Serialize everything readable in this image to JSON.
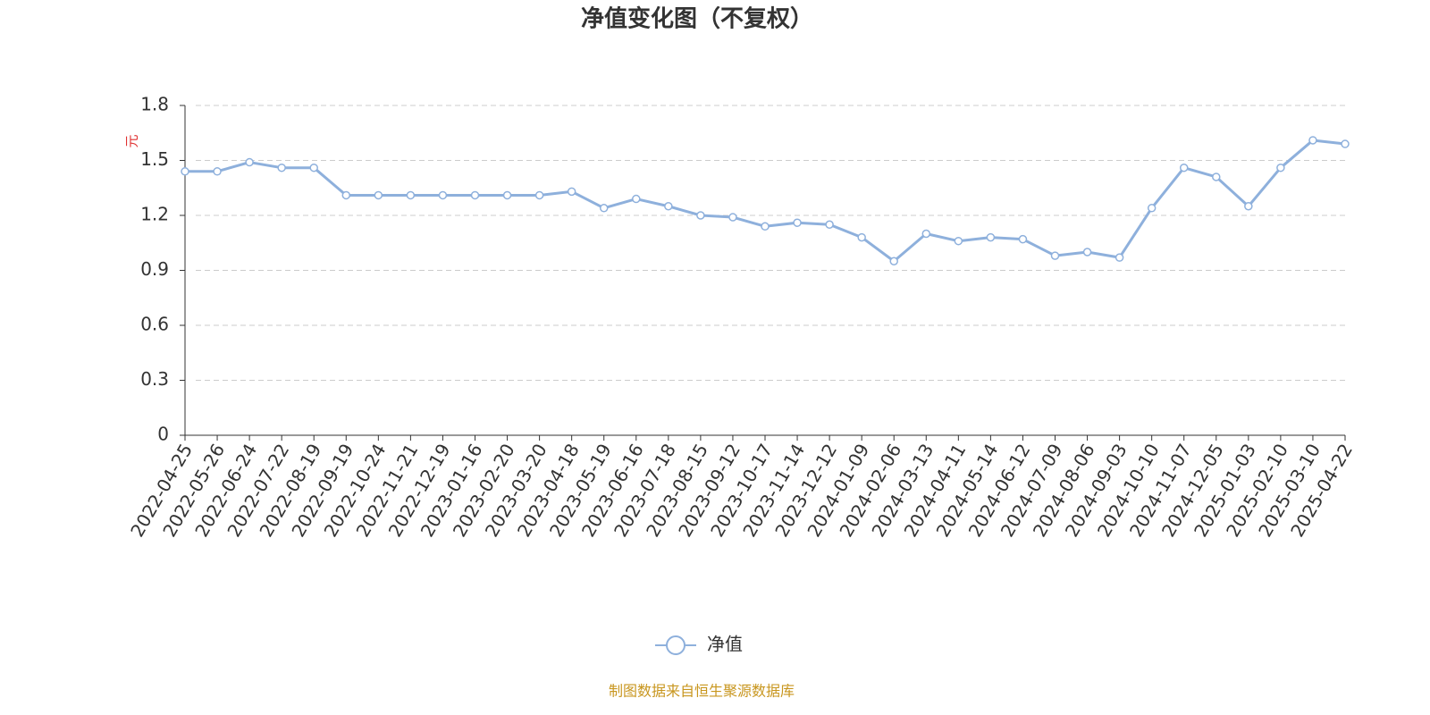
{
  "chart_data": {
    "type": "line",
    "title": "净值变化图（不复权）",
    "y_axis_label": "元",
    "categories": [
      "2022-04-25",
      "2022-05-26",
      "2022-06-24",
      "2022-07-22",
      "2022-08-19",
      "2022-09-19",
      "2022-10-24",
      "2022-11-21",
      "2022-12-19",
      "2023-01-16",
      "2023-02-20",
      "2023-03-20",
      "2023-04-18",
      "2023-05-19",
      "2023-06-16",
      "2023-07-18",
      "2023-08-15",
      "2023-09-12",
      "2023-10-17",
      "2023-11-14",
      "2023-12-12",
      "2024-01-09",
      "2024-02-06",
      "2024-03-13",
      "2024-04-11",
      "2024-05-14",
      "2024-06-12",
      "2024-07-09",
      "2024-08-06",
      "2024-09-03",
      "2024-10-10",
      "2024-11-07",
      "2024-12-05",
      "2025-01-03",
      "2025-02-10",
      "2025-03-10",
      "2025-04-22"
    ],
    "series": [
      {
        "name": "净值",
        "color": "#8eb0dc",
        "values": [
          1.44,
          1.44,
          1.49,
          1.46,
          1.46,
          1.31,
          1.31,
          1.31,
          1.31,
          1.31,
          1.31,
          1.31,
          1.33,
          1.24,
          1.29,
          1.25,
          1.2,
          1.19,
          1.14,
          1.16,
          1.15,
          1.08,
          0.95,
          1.1,
          1.06,
          1.08,
          1.07,
          0.98,
          1.0,
          0.97,
          1.24,
          1.46,
          1.41,
          1.25,
          1.46,
          1.61,
          1.59
        ]
      }
    ],
    "ylim": [
      0,
      1.8
    ],
    "yticks": [
      0,
      0.3,
      0.6,
      0.9,
      1.2,
      1.5,
      1.8
    ],
    "grid": true,
    "legend": "bottom",
    "source": "制图数据来自恒生聚源数据库"
  }
}
